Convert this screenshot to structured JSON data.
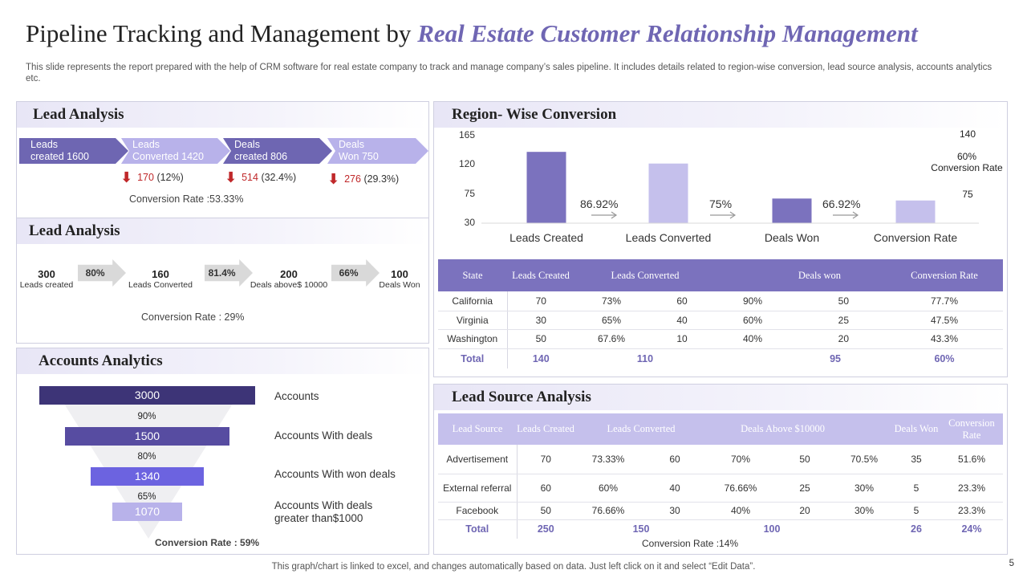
{
  "title": {
    "main": "Pipeline Tracking and Management by ",
    "highlight": "Real Estate Customer Relationship Management"
  },
  "description": "This slide represents the report prepared with the help of CRM software for real estate company to track and manage company’s sales pipeline. It includes details related to region-wise conversion, lead source analysis, accounts analytics etc.",
  "lead_analysis_1": {
    "heading": "Lead Analysis",
    "stages": [
      {
        "line1": "Leads",
        "line2": "created  1600",
        "color": "#6e66b2"
      },
      {
        "line1": "Leads",
        "line2": "Converted  1420",
        "color": "#b8b2ea"
      },
      {
        "line1": "Deals",
        "line2": "created  806",
        "color": "#6e66b2"
      },
      {
        "line1": "Deals",
        "line2": "Won  750",
        "color": "#b8b2ea"
      }
    ],
    "drops": [
      {
        "num": "170",
        "pct": "(12%)"
      },
      {
        "num": "514",
        "pct": "(32.4%)"
      },
      {
        "num": "276",
        "pct": "(29.3%)"
      }
    ],
    "conversion": "Conversion  Rate :53.33%"
  },
  "lead_analysis_2": {
    "heading": "Lead Analysis",
    "steps": [
      {
        "value": "300",
        "label": "Leads created"
      },
      {
        "value": "160",
        "label": "Leads Converted"
      },
      {
        "value": "200",
        "label": "Deals above$ 10000"
      },
      {
        "value": "100",
        "label": "Deals Won"
      }
    ],
    "arrows": [
      "80%",
      "81.4%",
      "66%"
    ],
    "conversion": "Conversion  Rate : 29%"
  },
  "accounts_analytics": {
    "heading": "Accounts Analytics",
    "bars": [
      {
        "value": "3000",
        "label": "Accounts",
        "color": "#3d3477"
      },
      {
        "value": "1500",
        "label": "Accounts With deals",
        "color": "#574ca1"
      },
      {
        "value": "1340",
        "label": "Accounts With won deals",
        "color": "#6c63e0"
      },
      {
        "value": "1070",
        "label": "Accounts With deals greater than$1000",
        "color": "#b8b2ea"
      }
    ],
    "bar_values": [
      3000,
      1500,
      1340,
      1070
    ],
    "percents": [
      "90%",
      "80%",
      "65%"
    ],
    "conversion": "Conversion Rate : 59%"
  },
  "region_wise": {
    "heading": "Region- Wise Conversion",
    "side_top": "140",
    "side_mid_line1": "60%",
    "side_mid_line2": "Conversion Rate",
    "side_bottom": "75",
    "conversions": [
      "86.92%",
      "75%",
      "66.92%"
    ]
  },
  "chart_data": {
    "type": "bar",
    "title": "Region- Wise Conversion",
    "categories": [
      "Leads Created",
      "Leads Converted",
      "Deals Won",
      "Conversion Rate"
    ],
    "values": [
      140,
      122,
      68,
      65
    ],
    "ylim": [
      30,
      165
    ],
    "yticks": [
      "165",
      "120",
      "75",
      "30"
    ],
    "ytick_values": [
      165,
      120,
      75,
      30
    ],
    "colors": [
      "#7b72be",
      "#c5c0ec",
      "#7b72be",
      "#c5c0ec"
    ],
    "xlabel": "",
    "ylabel": ""
  },
  "region_table": {
    "headers": [
      "State",
      "Leads Created",
      "Leads Converted",
      "Deals won",
      "Conversion Rate"
    ],
    "rows": [
      [
        "California",
        "70",
        "73%",
        "60",
        "90%",
        "50",
        "77.7%"
      ],
      [
        "Virginia",
        "30",
        "65%",
        "40",
        "60%",
        "25",
        "47.5%"
      ],
      [
        "Washington",
        "50",
        "67.6%",
        "10",
        "40%",
        "20",
        "43.3%"
      ]
    ],
    "total": [
      "Total",
      "140",
      "",
      "110",
      "",
      "95",
      "",
      "60%"
    ]
  },
  "lead_source": {
    "heading": "Lead Source Analysis",
    "headers": [
      "Lead Source",
      "Leads Created",
      "Leads Converted",
      "Deals Above $10000",
      "Deals Won",
      "Conversion Rate"
    ],
    "rows": [
      [
        "Advertisement",
        "70",
        "73.33%",
        "60",
        "70%",
        "50",
        "70.5%",
        "35",
        "51.6%"
      ],
      [
        "External referral",
        "60",
        "60%",
        "40",
        "76.66%",
        "25",
        "30%",
        "5",
        "23.3%"
      ],
      [
        "Facebook",
        "50",
        "76.66%",
        "30",
        "40%",
        "20",
        "30%",
        "5",
        "23.3%"
      ]
    ],
    "total": [
      "Total",
      "250",
      "",
      "150",
      "",
      "100",
      "",
      "26",
      "24%"
    ],
    "conversion": "Conversion Rate :14%"
  },
  "footer": "This graph/chart is linked to excel,  and changes automatically based on data. Just left click on it and select “Edit Data”.",
  "page_number": "5"
}
